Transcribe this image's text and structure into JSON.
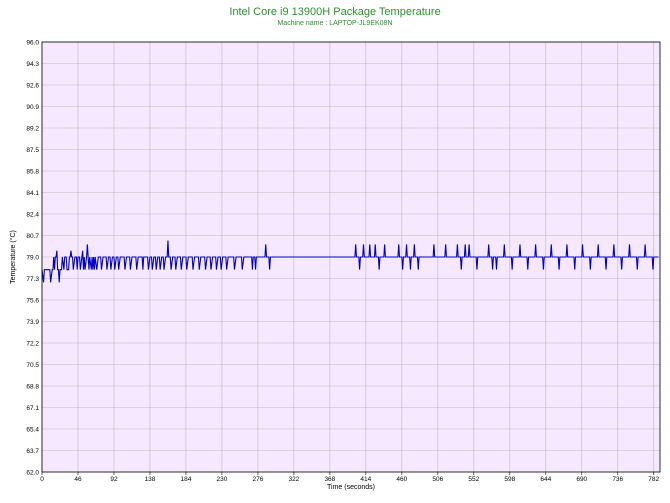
{
  "chart_data": {
    "type": "line",
    "title": "Intel Core i9 13900H Package Temperature",
    "subtitle": "Machine name : LAPTOP-JL9EK08N",
    "xlabel": "Time (seconds)",
    "ylabel": "Temperature (°C)",
    "xlim": [
      0,
      790
    ],
    "ylim": [
      62.0,
      96.0
    ],
    "x_ticks": [
      "0",
      "46",
      "92",
      "138",
      "184",
      "230",
      "276",
      "322",
      "368",
      "414",
      "460",
      "506",
      "552",
      "598",
      "644",
      "690",
      "736",
      "782"
    ],
    "y_ticks": [
      "96.0",
      "94.3",
      "92.6",
      "90.9",
      "89.2",
      "87.5",
      "85.8",
      "84.1",
      "82.4",
      "80.7",
      "79.0",
      "77.3",
      "75.6",
      "73.9",
      "72.2",
      "70.5",
      "68.8",
      "67.1",
      "65.4",
      "63.7",
      "62.0"
    ],
    "grid": true,
    "colors": {
      "plot_background": "#f6e9ff",
      "grid": "#b9b9b9",
      "line": "#0000c8",
      "title": "#2f8f2f"
    },
    "series": [
      {
        "points": [
          [
            0,
            78
          ],
          [
            2,
            77
          ],
          [
            3,
            78
          ],
          [
            10,
            78
          ],
          [
            11,
            77
          ],
          [
            13,
            78
          ],
          [
            14,
            78
          ],
          [
            15,
            79
          ],
          [
            16,
            78
          ],
          [
            17,
            79
          ],
          [
            18,
            79
          ],
          [
            19,
            79.5
          ],
          [
            20,
            78
          ],
          [
            21,
            78
          ],
          [
            22,
            77
          ],
          [
            23,
            78
          ],
          [
            25,
            78
          ],
          [
            26,
            79
          ],
          [
            28,
            78
          ],
          [
            29,
            79
          ],
          [
            31,
            79
          ],
          [
            32,
            78
          ],
          [
            34,
            78
          ],
          [
            35,
            79
          ],
          [
            36,
            79
          ],
          [
            37,
            79.5
          ],
          [
            38,
            79
          ],
          [
            39,
            79
          ],
          [
            40,
            78
          ],
          [
            42,
            79
          ],
          [
            44,
            79
          ],
          [
            45,
            78
          ],
          [
            46,
            79
          ],
          [
            48,
            79
          ],
          [
            49,
            78
          ],
          [
            51,
            79
          ],
          [
            52,
            79.5
          ],
          [
            53,
            78
          ],
          [
            54,
            79
          ],
          [
            55,
            78
          ],
          [
            57,
            79
          ],
          [
            58,
            80
          ],
          [
            59,
            79
          ],
          [
            60,
            78
          ],
          [
            61,
            79
          ],
          [
            63,
            78
          ],
          [
            64,
            79
          ],
          [
            65,
            78
          ],
          [
            66,
            79
          ],
          [
            67,
            78
          ],
          [
            68,
            79
          ],
          [
            70,
            78
          ],
          [
            72,
            79
          ],
          [
            75,
            79
          ],
          [
            76,
            78
          ],
          [
            78,
            79
          ],
          [
            82,
            79
          ],
          [
            83,
            78
          ],
          [
            85,
            79
          ],
          [
            87,
            79
          ],
          [
            88,
            78
          ],
          [
            90,
            79
          ],
          [
            92,
            79
          ],
          [
            93,
            78
          ],
          [
            95,
            79
          ],
          [
            97,
            79
          ],
          [
            98,
            78
          ],
          [
            100,
            79
          ],
          [
            105,
            79
          ],
          [
            106,
            78
          ],
          [
            108,
            79
          ],
          [
            112,
            79
          ],
          [
            113,
            78
          ],
          [
            115,
            79
          ],
          [
            120,
            79
          ],
          [
            121,
            78
          ],
          [
            123,
            79
          ],
          [
            128,
            79
          ],
          [
            129,
            78
          ],
          [
            130,
            79
          ],
          [
            135,
            79
          ],
          [
            136,
            78
          ],
          [
            138,
            79
          ],
          [
            140,
            79
          ],
          [
            141,
            78
          ],
          [
            143,
            79
          ],
          [
            145,
            79
          ],
          [
            146,
            78
          ],
          [
            148,
            79
          ],
          [
            150,
            79
          ],
          [
            151,
            78
          ],
          [
            153,
            79
          ],
          [
            155,
            79
          ],
          [
            156,
            78
          ],
          [
            158,
            79
          ],
          [
            160,
            79
          ],
          [
            161,
            80.3
          ],
          [
            162,
            79
          ],
          [
            164,
            79
          ],
          [
            165,
            78
          ],
          [
            167,
            79
          ],
          [
            170,
            79
          ],
          [
            171,
            78
          ],
          [
            173,
            79
          ],
          [
            177,
            79
          ],
          [
            178,
            78
          ],
          [
            180,
            79
          ],
          [
            184,
            79
          ],
          [
            185,
            78
          ],
          [
            187,
            79
          ],
          [
            192,
            79
          ],
          [
            193,
            78
          ],
          [
            195,
            79
          ],
          [
            200,
            79
          ],
          [
            201,
            78
          ],
          [
            203,
            79
          ],
          [
            208,
            79
          ],
          [
            209,
            78
          ],
          [
            211,
            79
          ],
          [
            215,
            79
          ],
          [
            216,
            78
          ],
          [
            218,
            79
          ],
          [
            222,
            79
          ],
          [
            223,
            78
          ],
          [
            225,
            79
          ],
          [
            228,
            79
          ],
          [
            229,
            78
          ],
          [
            231,
            79
          ],
          [
            235,
            79
          ],
          [
            236,
            78
          ],
          [
            238,
            79
          ],
          [
            245,
            79
          ],
          [
            246,
            78
          ],
          [
            248,
            79
          ],
          [
            255,
            79
          ],
          [
            256,
            78
          ],
          [
            258,
            79
          ],
          [
            268,
            79
          ],
          [
            269,
            78
          ],
          [
            270,
            79
          ],
          [
            272,
            79
          ],
          [
            273,
            78
          ],
          [
            274,
            79
          ],
          [
            285,
            79
          ],
          [
            286,
            80
          ],
          [
            287,
            79
          ],
          [
            290,
            79
          ],
          [
            291,
            78
          ],
          [
            292,
            79
          ],
          [
            400,
            79
          ],
          [
            401,
            80
          ],
          [
            402,
            79
          ],
          [
            405,
            79
          ],
          [
            406,
            78
          ],
          [
            407,
            79
          ],
          [
            410,
            79
          ],
          [
            411,
            80
          ],
          [
            412,
            79
          ],
          [
            418,
            79
          ],
          [
            419,
            80
          ],
          [
            420,
            79
          ],
          [
            425,
            79
          ],
          [
            426,
            80
          ],
          [
            427,
            79
          ],
          [
            430,
            79
          ],
          [
            431,
            78
          ],
          [
            432,
            79
          ],
          [
            437,
            79
          ],
          [
            438,
            80
          ],
          [
            439,
            79
          ],
          [
            455,
            79
          ],
          [
            456,
            80
          ],
          [
            457,
            79
          ],
          [
            460,
            79
          ],
          [
            461,
            78
          ],
          [
            462,
            79
          ],
          [
            465,
            79
          ],
          [
            466,
            80
          ],
          [
            467,
            79
          ],
          [
            470,
            79
          ],
          [
            471,
            78
          ],
          [
            472,
            79
          ],
          [
            475,
            79
          ],
          [
            476,
            80
          ],
          [
            477,
            79
          ],
          [
            480,
            79
          ],
          [
            481,
            78
          ],
          [
            482,
            79
          ],
          [
            500,
            79
          ],
          [
            501,
            80
          ],
          [
            502,
            79
          ],
          [
            515,
            79
          ],
          [
            516,
            80
          ],
          [
            517,
            79
          ],
          [
            530,
            79
          ],
          [
            531,
            80
          ],
          [
            532,
            79
          ],
          [
            535,
            79
          ],
          [
            536,
            78
          ],
          [
            537,
            79
          ],
          [
            540,
            79
          ],
          [
            541,
            80
          ],
          [
            542,
            79
          ],
          [
            545,
            79
          ],
          [
            546,
            80
          ],
          [
            547,
            79
          ],
          [
            555,
            79
          ],
          [
            556,
            78
          ],
          [
            557,
            79
          ],
          [
            570,
            79
          ],
          [
            571,
            80
          ],
          [
            572,
            79
          ],
          [
            575,
            79
          ],
          [
            576,
            78
          ],
          [
            577,
            79
          ],
          [
            580,
            79
          ],
          [
            581,
            78
          ],
          [
            582,
            79
          ],
          [
            590,
            79
          ],
          [
            591,
            80
          ],
          [
            592,
            79
          ],
          [
            600,
            79
          ],
          [
            601,
            78
          ],
          [
            602,
            79
          ],
          [
            610,
            79
          ],
          [
            611,
            80
          ],
          [
            612,
            79
          ],
          [
            620,
            79
          ],
          [
            621,
            78
          ],
          [
            622,
            79
          ],
          [
            630,
            79
          ],
          [
            631,
            80
          ],
          [
            632,
            79
          ],
          [
            640,
            79
          ],
          [
            641,
            78
          ],
          [
            642,
            79
          ],
          [
            650,
            79
          ],
          [
            651,
            80
          ],
          [
            652,
            79
          ],
          [
            660,
            79
          ],
          [
            661,
            78
          ],
          [
            662,
            79
          ],
          [
            670,
            79
          ],
          [
            671,
            80
          ],
          [
            672,
            79
          ],
          [
            680,
            79
          ],
          [
            681,
            78
          ],
          [
            682,
            79
          ],
          [
            690,
            79
          ],
          [
            691,
            80
          ],
          [
            692,
            79
          ],
          [
            700,
            79
          ],
          [
            701,
            78
          ],
          [
            702,
            79
          ],
          [
            710,
            79
          ],
          [
            711,
            80
          ],
          [
            712,
            79
          ],
          [
            720,
            79
          ],
          [
            721,
            78
          ],
          [
            722,
            79
          ],
          [
            730,
            79
          ],
          [
            731,
            80
          ],
          [
            732,
            79
          ],
          [
            740,
            79
          ],
          [
            741,
            78
          ],
          [
            742,
            79
          ],
          [
            750,
            79
          ],
          [
            751,
            80
          ],
          [
            752,
            79
          ],
          [
            760,
            79
          ],
          [
            761,
            78
          ],
          [
            762,
            79
          ],
          [
            770,
            79
          ],
          [
            771,
            80
          ],
          [
            772,
            79
          ],
          [
            780,
            79
          ],
          [
            781,
            78
          ],
          [
            782,
            79
          ],
          [
            788,
            79
          ]
        ]
      }
    ]
  }
}
